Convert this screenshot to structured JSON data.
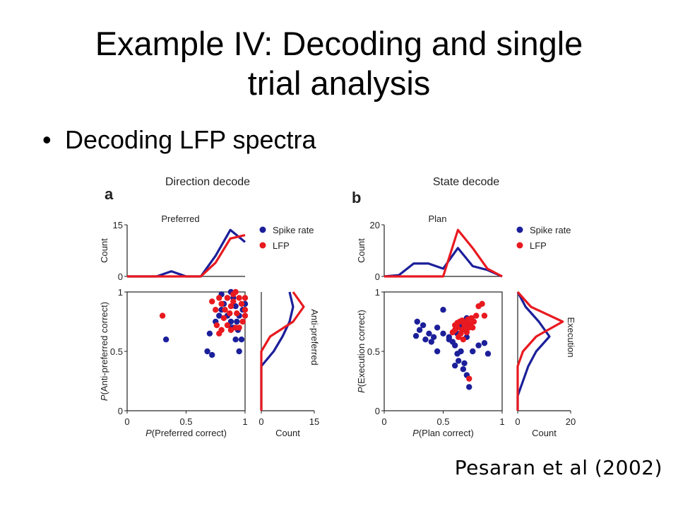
{
  "slide": {
    "title_line1": "Example IV:  Decoding and single",
    "title_line2": "trial analysis",
    "bullet": "Decoding LFP spectra",
    "citation": "Pesaran et al (2002)"
  },
  "colors": {
    "spike": "#1b1f9a",
    "lfp": "#e8191f",
    "axis": "#222222"
  },
  "chart_data": [
    {
      "panel_letter": "a",
      "title": "Direction decode",
      "type": "scatter",
      "legend": [
        "Spike rate",
        "LFP"
      ],
      "legend_position": "right of top histogram",
      "scatter": {
        "xlabel": "P(Preferred correct)",
        "ylabel": "P(Anti-preferred correct)",
        "xlim": [
          0,
          1
        ],
        "ylim": [
          0,
          1
        ],
        "xticks": [
          "0",
          "0.5",
          "1"
        ],
        "yticks": [
          "0",
          "0.5",
          "1"
        ],
        "series": [
          {
            "name": "Spike rate",
            "points": [
              [
                0.33,
                0.6
              ],
              [
                0.68,
                0.5
              ],
              [
                0.72,
                0.47
              ],
              [
                0.7,
                0.65
              ],
              [
                0.75,
                0.75
              ],
              [
                0.78,
                0.8
              ],
              [
                0.8,
                0.85
              ],
              [
                0.82,
                0.9
              ],
              [
                0.85,
                0.95
              ],
              [
                0.88,
                1.0
              ],
              [
                0.9,
                0.95
              ],
              [
                0.92,
                0.88
              ],
              [
                0.95,
                0.8
              ],
              [
                0.93,
                0.75
              ],
              [
                0.9,
                0.7
              ],
              [
                0.88,
                0.75
              ],
              [
                0.85,
                0.8
              ],
              [
                0.8,
                0.98
              ],
              [
                0.92,
                0.6
              ],
              [
                0.95,
                0.5
              ],
              [
                0.97,
                0.6
              ],
              [
                0.98,
                0.85
              ],
              [
                1.0,
                0.9
              ],
              [
                0.94,
                0.68
              ],
              [
                0.86,
                0.72
              ]
            ]
          },
          {
            "name": "LFP",
            "points": [
              [
                0.3,
                0.8
              ],
              [
                0.72,
                0.92
              ],
              [
                0.75,
                0.85
              ],
              [
                0.78,
                0.95
              ],
              [
                0.8,
                0.9
              ],
              [
                0.82,
                0.78
              ],
              [
                0.85,
                0.95
              ],
              [
                0.88,
                0.88
              ],
              [
                0.9,
                0.92
              ],
              [
                0.92,
                1.0
              ],
              [
                0.95,
                0.95
              ],
              [
                0.97,
                0.9
              ],
              [
                1.0,
                0.85
              ],
              [
                1.0,
                0.8
              ],
              [
                0.98,
                0.75
              ],
              [
                0.95,
                0.7
              ],
              [
                0.92,
                0.7
              ],
              [
                0.88,
                0.68
              ],
              [
                0.85,
                0.72
              ],
              [
                0.8,
                0.68
              ],
              [
                0.78,
                0.65
              ],
              [
                0.83,
                0.85
              ],
              [
                0.87,
                0.82
              ],
              [
                0.93,
                0.82
              ],
              [
                1.0,
                0.95
              ],
              [
                0.9,
                0.98
              ],
              [
                0.76,
                0.72
              ]
            ]
          }
        ]
      },
      "top_histogram": {
        "label": "Preferred",
        "ylabel": "Count",
        "ylim": [
          0,
          15
        ],
        "yticks": [
          "0",
          "15"
        ],
        "x": [
          0,
          0.125,
          0.25,
          0.375,
          0.5,
          0.625,
          0.75,
          0.875,
          1.0
        ],
        "series": [
          {
            "name": "Spike rate",
            "values": [
              0,
              0,
              0,
              1.5,
              0,
              0,
              6,
              13.5,
              10
            ]
          },
          {
            "name": "LFP",
            "values": [
              0,
              0,
              0,
              0,
              0,
              0,
              4,
              11,
              12
            ]
          }
        ]
      },
      "right_histogram": {
        "label": "Anti-preferred",
        "xlabel": "Count",
        "xlim": [
          0,
          15
        ],
        "xticks": [
          "0",
          "15"
        ],
        "y": [
          0,
          0.125,
          0.25,
          0.375,
          0.5,
          0.625,
          0.75,
          0.875,
          1.0
        ],
        "series": [
          {
            "name": "Spike rate",
            "values": [
              0,
              0,
              0,
              0,
              3.5,
              6,
              8,
              9,
              8
            ]
          },
          {
            "name": "LFP",
            "values": [
              0,
              0,
              0,
              0,
              0,
              2.5,
              9,
              12,
              9
            ]
          }
        ]
      }
    },
    {
      "panel_letter": "b",
      "title": "State decode",
      "type": "scatter",
      "legend": [
        "Spike rate",
        "LFP"
      ],
      "legend_position": "right of top histogram",
      "scatter": {
        "xlabel": "P(Plan correct)",
        "ylabel": "P(Execution correct)",
        "xlim": [
          0,
          1
        ],
        "ylim": [
          0,
          1
        ],
        "xticks": [
          "0",
          "0.5",
          "1"
        ],
        "yticks": [
          "0",
          "0.5",
          "1"
        ],
        "series": [
          {
            "name": "Spike rate",
            "points": [
              [
                0.27,
                0.63
              ],
              [
                0.3,
                0.68
              ],
              [
                0.33,
                0.72
              ],
              [
                0.35,
                0.6
              ],
              [
                0.38,
                0.65
              ],
              [
                0.4,
                0.58
              ],
              [
                0.42,
                0.62
              ],
              [
                0.45,
                0.5
              ],
              [
                0.28,
                0.75
              ],
              [
                0.5,
                0.65
              ],
              [
                0.55,
                0.62
              ],
              [
                0.58,
                0.58
              ],
              [
                0.6,
                0.55
              ],
              [
                0.62,
                0.48
              ],
              [
                0.65,
                0.5
              ],
              [
                0.63,
                0.42
              ],
              [
                0.6,
                0.38
              ],
              [
                0.67,
                0.35
              ],
              [
                0.7,
                0.3
              ],
              [
                0.72,
                0.2
              ],
              [
                0.68,
                0.4
              ],
              [
                0.75,
                0.5
              ],
              [
                0.8,
                0.55
              ],
              [
                0.85,
                0.57
              ],
              [
                0.5,
                0.85
              ],
              [
                0.55,
                0.6
              ],
              [
                0.62,
                0.65
              ],
              [
                0.66,
                0.72
              ],
              [
                0.7,
                0.78
              ],
              [
                0.88,
                0.48
              ],
              [
                0.45,
                0.7
              ],
              [
                0.7,
                0.62
              ]
            ]
          },
          {
            "name": "LFP",
            "points": [
              [
                0.6,
                0.72
              ],
              [
                0.62,
                0.7
              ],
              [
                0.64,
                0.75
              ],
              [
                0.66,
                0.68
              ],
              [
                0.68,
                0.72
              ],
              [
                0.7,
                0.74
              ],
              [
                0.72,
                0.7
              ],
              [
                0.74,
                0.78
              ],
              [
                0.76,
                0.75
              ],
              [
                0.65,
                0.65
              ],
              [
                0.6,
                0.68
              ],
              [
                0.63,
                0.62
              ],
              [
                0.67,
                0.6
              ],
              [
                0.7,
                0.66
              ],
              [
                0.73,
                0.73
              ],
              [
                0.78,
                0.8
              ],
              [
                0.8,
                0.88
              ],
              [
                0.83,
                0.9
              ],
              [
                0.85,
                0.8
              ],
              [
                0.62,
                0.74
              ],
              [
                0.69,
                0.69
              ],
              [
                0.71,
                0.77
              ],
              [
                0.66,
                0.76
              ],
              [
                0.72,
                0.27
              ],
              [
                0.58,
                0.66
              ],
              [
                0.75,
                0.7
              ]
            ]
          }
        ]
      },
      "top_histogram": {
        "label": "Plan",
        "ylabel": "Count",
        "ylim": [
          0,
          20
        ],
        "yticks": [
          "0",
          "20"
        ],
        "x": [
          0,
          0.125,
          0.25,
          0.375,
          0.5,
          0.625,
          0.75,
          0.875,
          1.0
        ],
        "series": [
          {
            "name": "Spike rate",
            "values": [
              0,
              0.5,
              5,
              5,
              3,
              11,
              4,
              2.5,
              0
            ]
          },
          {
            "name": "LFP",
            "values": [
              0,
              0,
              0,
              0,
              0,
              18,
              11,
              3,
              0
            ]
          }
        ]
      },
      "right_histogram": {
        "label": "Execution",
        "xlabel": "Count",
        "xlim": [
          0,
          20
        ],
        "xticks": [
          "0",
          "20"
        ],
        "y": [
          0,
          0.125,
          0.25,
          0.375,
          0.5,
          0.625,
          0.75,
          0.875,
          1.0
        ],
        "series": [
          {
            "name": "Spike rate",
            "values": [
              0,
              0,
              2,
              4,
              7,
              12,
              8,
              3,
              0
            ]
          },
          {
            "name": "LFP",
            "values": [
              0,
              0,
              0,
              0,
              2,
              7,
              17,
              5,
              0
            ]
          }
        ]
      }
    }
  ]
}
